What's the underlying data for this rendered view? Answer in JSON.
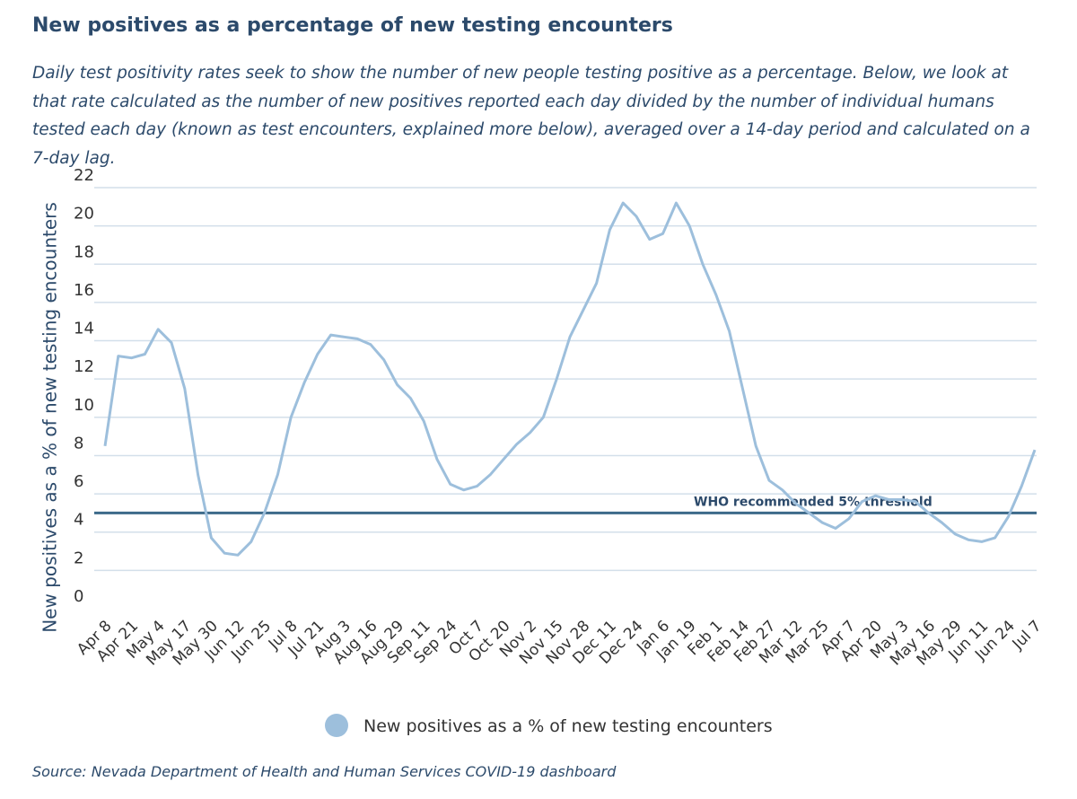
{
  "chart_data": {
    "type": "line",
    "title": "New positives as a percentage of new testing encounters",
    "subtitle": "Daily test positivity rates seek to show the number of new people testing positive as a percentage. Below, we look at that rate calculated as the number of new positives reported each day divided by the number of individual humans tested each day (known as test encounters, explained more below), averaged over a 14-day period and calculated on a 7-day lag.",
    "y_label": "New positives as a % of new testing encounters",
    "source": "Source: Nevada Department of Health and Human Services COVID-19 dashboard",
    "categories": [
      "Apr 8",
      null,
      "Apr 21",
      null,
      "May 4",
      null,
      "May 17",
      null,
      "May 30",
      null,
      "Jun 12",
      null,
      "Jun 25",
      null,
      "Jul 8",
      null,
      "Jul 21",
      null,
      "Aug 3",
      null,
      "Aug 16",
      null,
      "Aug 29",
      null,
      "Sep 11",
      null,
      "Sep 24",
      null,
      "Oct 7",
      null,
      "Oct 20",
      null,
      "Nov 2",
      null,
      "Nov 15",
      null,
      "Nov 28",
      null,
      "Dec 11",
      null,
      "Dec 24",
      null,
      "Jan 6",
      null,
      "Jan 19",
      null,
      "Feb 1",
      null,
      "Feb 14",
      null,
      "Feb 27",
      null,
      "Mar 12",
      null,
      "Mar 25",
      null,
      "Apr 7",
      null,
      "Apr 20",
      null,
      "May 3",
      null,
      "May 16",
      null,
      "May 29",
      null,
      "Jun 11",
      null,
      "Jun 24",
      null,
      "Jul 7"
    ],
    "series": [
      {
        "name": "New positives as a % of new testing encounters",
        "color": "#9dbfdc",
        "values": [
          8.5,
          13.2,
          13.1,
          13.3,
          14.6,
          13.9,
          11.5,
          7.0,
          3.7,
          2.9,
          2.8,
          3.5,
          5.0,
          7.0,
          10.0,
          11.8,
          13.3,
          14.3,
          14.2,
          14.1,
          13.8,
          13.0,
          11.7,
          11.0,
          9.8,
          7.8,
          6.5,
          6.2,
          6.4,
          7.0,
          7.8,
          8.6,
          9.2,
          10.0,
          12.0,
          14.2,
          15.6,
          17.0,
          19.8,
          21.2,
          20.5,
          19.3,
          19.6,
          21.2,
          20.0,
          18.0,
          16.4,
          14.5,
          11.5,
          8.5,
          6.7,
          6.2,
          5.5,
          5.0,
          4.5,
          4.2,
          4.7,
          5.6,
          5.9,
          5.7,
          5.7,
          5.6,
          5.0,
          4.5,
          3.9,
          3.6,
          3.5,
          3.7,
          4.8,
          6.4,
          8.3
        ]
      }
    ],
    "threshold": {
      "value": 5,
      "label": "WHO recommended 5% threshold",
      "color": "#3d6a8a"
    },
    "ylim": [
      0,
      22
    ],
    "yticks": [
      0,
      2,
      4,
      6,
      8,
      10,
      12,
      14,
      16,
      18,
      20,
      22
    ],
    "grid": true,
    "legend": "bottom"
  }
}
